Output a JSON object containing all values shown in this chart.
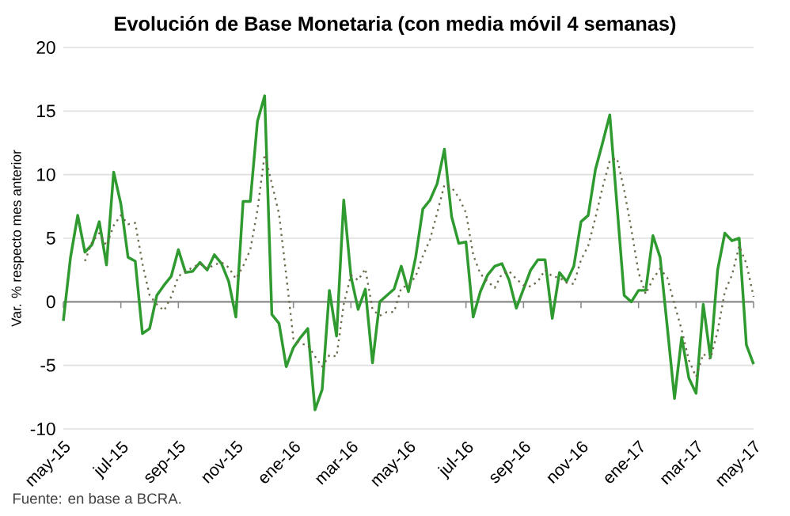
{
  "chart_data": {
    "type": "line",
    "title": "Evolución de Base Monetaria (con media móvil 4 semanas)",
    "ylabel": "Var. % respecto mes anterior",
    "annotations": [
      "Fuente: en base a BCRA."
    ],
    "categories": [
      "may-15",
      null,
      null,
      null,
      null,
      null,
      null,
      null,
      "jul-15",
      null,
      null,
      null,
      null,
      null,
      null,
      null,
      "sep-15",
      null,
      null,
      null,
      null,
      null,
      null,
      null,
      "nov-15",
      null,
      null,
      null,
      null,
      null,
      null,
      null,
      "ene-16",
      null,
      null,
      null,
      null,
      null,
      null,
      null,
      "mar-16",
      null,
      null,
      null,
      null,
      null,
      null,
      null,
      "may-16",
      null,
      null,
      null,
      null,
      null,
      null,
      null,
      "jul-16",
      null,
      null,
      null,
      null,
      null,
      null,
      null,
      "sep-16",
      null,
      null,
      null,
      null,
      null,
      null,
      null,
      "nov-16",
      null,
      null,
      null,
      null,
      null,
      null,
      null,
      "ene-17",
      null,
      null,
      null,
      null,
      null,
      null,
      null,
      "mar-17",
      null,
      null,
      null,
      null,
      null,
      null,
      null,
      "may-17"
    ],
    "series": [
      {
        "color": "#2f9a2f",
        "line_style": "solid",
        "values": [
          -1.5,
          3.5,
          6.8,
          3.9,
          4.5,
          6.3,
          2.9,
          10.2,
          7.7,
          3.5,
          3.2,
          -2.5,
          -2.1,
          0.5,
          1.3,
          2.0,
          4.1,
          2.3,
          2.4,
          3.1,
          2.5,
          3.7,
          3.0,
          1.6,
          -1.2,
          7.9,
          7.9,
          14.2,
          16.2,
          -1.0,
          -1.7,
          -5.1,
          -3.6,
          -2.8,
          -2.1,
          -8.5,
          -6.9,
          0.9,
          -2.7,
          8.0,
          2.0,
          -0.6,
          1.0,
          -4.8,
          0.0,
          0.5,
          1.0,
          2.8,
          0.8,
          3.5,
          7.3,
          8.0,
          9.3,
          12.0,
          6.7,
          4.6,
          4.7,
          -1.2,
          0.8,
          2.1,
          2.8,
          3.0,
          1.7,
          -0.5,
          1.0,
          2.5,
          3.3,
          3.3,
          -1.3,
          2.3,
          1.6,
          2.8,
          6.3,
          6.8,
          10.4,
          12.5,
          14.7,
          7.6,
          0.5,
          0.0,
          0.9,
          0.9,
          5.2,
          3.5,
          -2.0,
          -7.6,
          -2.8,
          -6.0,
          -7.2,
          -0.2,
          -4.4,
          2.5,
          5.4,
          4.8,
          5.0,
          -3.4,
          -4.9
        ]
      },
      {
        "color": "#6e6e4e",
        "line_style": "dotted",
        "values": [
          null,
          null,
          null,
          3.2,
          4.7,
          5.4,
          4.4,
          6.0,
          6.8,
          6.1,
          6.2,
          3.0,
          0.5,
          -0.2,
          -0.7,
          0.4,
          2.0,
          2.4,
          2.7,
          3.0,
          2.6,
          2.9,
          3.1,
          2.7,
          1.8,
          2.8,
          4.1,
          7.2,
          11.6,
          9.3,
          6.9,
          2.1,
          -2.9,
          -3.3,
          -3.4,
          -4.3,
          -5.1,
          -4.2,
          -4.3,
          -0.2,
          2.1,
          1.7,
          2.6,
          -0.6,
          -1.1,
          -0.8,
          -0.8,
          1.1,
          1.3,
          2.0,
          3.6,
          4.9,
          7.0,
          9.2,
          9.0,
          8.2,
          7.0,
          3.7,
          2.2,
          1.6,
          1.1,
          2.2,
          2.4,
          1.8,
          1.3,
          1.2,
          1.6,
          2.5,
          2.0,
          1.9,
          1.5,
          1.4,
          3.3,
          4.4,
          6.6,
          9.0,
          11.1,
          11.3,
          8.8,
          5.7,
          2.3,
          0.6,
          1.8,
          2.6,
          1.9,
          -0.2,
          -2.2,
          -4.6,
          -5.9,
          -4.1,
          -4.5,
          -2.3,
          0.8,
          2.1,
          4.4,
          3.0,
          0.4
        ]
      }
    ],
    "ylim": [
      -10,
      20
    ],
    "yticks": [
      -10,
      -5,
      0,
      5,
      10,
      15,
      20
    ],
    "grid": "y",
    "marker": "none"
  }
}
